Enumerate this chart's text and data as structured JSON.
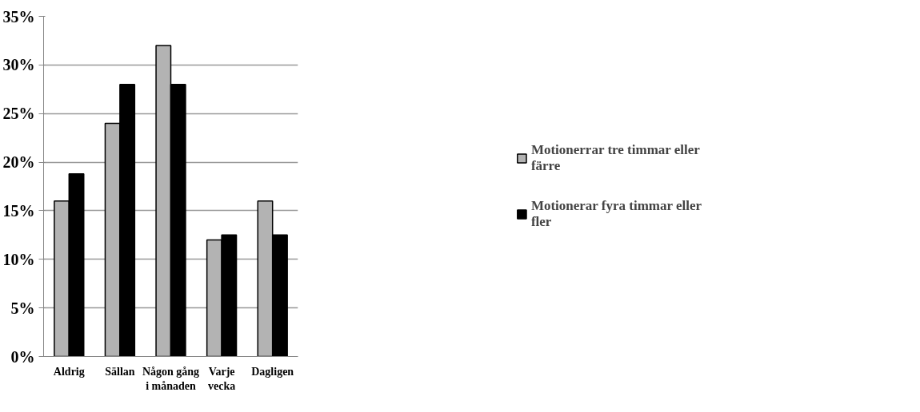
{
  "chart_data": {
    "type": "bar",
    "categories": [
      "Aldrig",
      "Sällan",
      "Någon gång i månaden",
      "Varje vecka",
      "Dagligen"
    ],
    "series": [
      {
        "name": "Motionerrar tre timmar eller färre",
        "color": "#b3b3b3",
        "values": [
          16,
          24,
          32,
          12,
          16
        ]
      },
      {
        "name": "Motionerar fyra timmar eller fler",
        "color": "#000000",
        "values": [
          18.8,
          28,
          28,
          12.5,
          12.5
        ]
      }
    ],
    "ylim": [
      0,
      35
    ],
    "yticks": [
      {
        "value": 0,
        "label": "0%"
      },
      {
        "value": 5,
        "label": "5%"
      },
      {
        "value": 10,
        "label": "10%"
      },
      {
        "value": 15,
        "label": "15%"
      },
      {
        "value": 20,
        "label": "20%"
      },
      {
        "value": 25,
        "label": "25%"
      },
      {
        "value": 30,
        "label": "30%"
      },
      {
        "value": 35,
        "label": "35%"
      }
    ],
    "grid": "y",
    "legend": "right"
  }
}
